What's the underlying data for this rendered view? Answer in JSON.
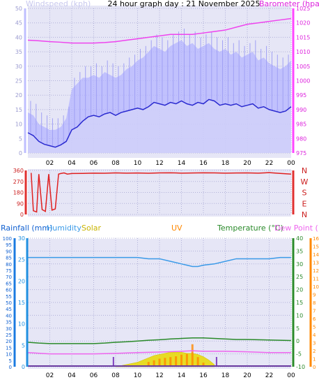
{
  "chart_data": [
    {
      "type": "line",
      "title": "24 hour graph day : 21 November 2025",
      "left_axis_label": "Windspeed (kph)",
      "right_axis_label": "Barometer (hpa)",
      "left_ticks": [
        "0",
        "5",
        "10",
        "15",
        "20",
        "25",
        "30",
        "35",
        "40",
        "45",
        "50"
      ],
      "right_ticks": [
        "975",
        "980",
        "985",
        "990",
        "995",
        "1000",
        "1005",
        "1010",
        "1015",
        "1020",
        "1025"
      ],
      "x_ticks": [
        "02",
        "04",
        "06",
        "08",
        "10",
        "12",
        "14",
        "16",
        "18",
        "20",
        "22",
        "00"
      ],
      "ylim_left": [
        0,
        50
      ],
      "ylim_right": [
        975,
        1025
      ],
      "x_range_hours": [
        0,
        24
      ],
      "colors": {
        "wind": "#2a2ad0",
        "gust": "#b4b4ff",
        "barometer": "#ee44ee",
        "axis_left": "#bfbfff",
        "axis_right": "#ff44ff"
      },
      "series": [
        {
          "key": "wind",
          "x": [
            0,
            0.5,
            1,
            1.5,
            2,
            2.5,
            3,
            3.5,
            4,
            4.5,
            5,
            5.5,
            6,
            6.5,
            7,
            7.5,
            8,
            8.5,
            9,
            9.5,
            10,
            10.5,
            11,
            11.5,
            12,
            12.5,
            13,
            13.5,
            14,
            14.5,
            15,
            15.5,
            16,
            16.5,
            17,
            17.5,
            18,
            18.5,
            19,
            19.5,
            20,
            20.5,
            21,
            21.5,
            22,
            22.5,
            23,
            23.5,
            24
          ],
          "values": [
            7,
            6,
            4,
            3,
            2.5,
            2,
            2.8,
            4,
            8,
            9,
            11,
            12.5,
            13,
            12.5,
            13.5,
            14,
            13,
            14,
            14.5,
            15,
            15.5,
            15,
            16,
            17.5,
            17,
            16.5,
            17.5,
            17,
            18,
            17,
            16.5,
            17.5,
            17,
            18.5,
            18,
            16.5,
            17,
            16.5,
            17,
            16,
            16.5,
            17,
            15.5,
            16,
            15,
            14.5,
            14,
            14.5,
            16
          ]
        },
        {
          "key": "gust",
          "x": [
            0,
            0.5,
            1,
            1.5,
            2,
            2.5,
            3,
            3.5,
            4,
            4.5,
            5,
            5.5,
            6,
            6.5,
            7,
            7.5,
            8,
            8.5,
            9,
            9.5,
            10,
            10.5,
            11,
            11.5,
            12,
            12.5,
            13,
            13.5,
            14,
            14.5,
            15,
            15.5,
            16,
            16.5,
            17,
            17.5,
            18,
            18.5,
            19,
            19.5,
            20,
            20.5,
            21,
            21.5,
            22,
            22.5,
            23,
            23.5,
            24
          ],
          "values": [
            14,
            13,
            10,
            9,
            8,
            8,
            9,
            12,
            22,
            24,
            26,
            26,
            27,
            26,
            28,
            27,
            26,
            27,
            29,
            30,
            32,
            33,
            35,
            37,
            36,
            35,
            37,
            38,
            39,
            37,
            38,
            36,
            37,
            38,
            36,
            35,
            36,
            34,
            35,
            33,
            34,
            35,
            32,
            33,
            31,
            30,
            29,
            30,
            32
          ]
        },
        {
          "key": "barometer",
          "x": [
            0,
            1,
            2,
            3,
            4,
            5,
            6,
            7,
            8,
            9,
            10,
            11,
            12,
            13,
            14,
            15,
            16,
            17,
            18,
            19,
            20,
            21,
            22,
            23,
            24
          ],
          "values": [
            1014,
            1013.8,
            1013.5,
            1013.3,
            1013,
            1013,
            1013,
            1013.2,
            1013.5,
            1014,
            1014.5,
            1015,
            1015.5,
            1016,
            1016,
            1016,
            1016.5,
            1017,
            1017.5,
            1018.5,
            1019.5,
            1020,
            1020.5,
            1021,
            1021.5
          ]
        }
      ]
    },
    {
      "type": "scatter",
      "title": "",
      "right_labels": [
        "N",
        "W",
        "S",
        "E",
        "N"
      ],
      "left_ticks": [
        "0",
        "90",
        "180",
        "270",
        "360"
      ],
      "x_ticks": [
        "02",
        "04",
        "06",
        "08",
        "10",
        "12",
        "14",
        "16",
        "18",
        "20",
        "22",
        "00"
      ],
      "ylim": [
        0,
        360
      ],
      "color": "#e02020",
      "series": [
        {
          "key": "direction",
          "x": [
            0.3,
            0.5,
            0.8,
            1.0,
            1.3,
            1.6,
            1.9,
            2.2,
            2.5,
            2.8,
            3.0,
            3.3,
            3.6,
            4,
            5,
            6,
            7,
            8,
            9,
            10,
            11,
            12,
            13,
            14,
            15,
            16,
            17,
            18,
            19,
            20,
            21,
            22,
            23,
            24
          ],
          "values": [
            340,
            30,
            20,
            330,
            40,
            25,
            330,
            35,
            45,
            330,
            335,
            340,
            330,
            335,
            336,
            338,
            337,
            340,
            338,
            339,
            337,
            340,
            341,
            338,
            339,
            341,
            340,
            338,
            339,
            340,
            338,
            342,
            336,
            330
          ]
        }
      ]
    },
    {
      "type": "line",
      "title": "",
      "legend": [
        "Rainfall (mm)",
        "Humidity",
        "Solar",
        "UV",
        "Temperature (°C)",
        "Dew Point (°C)"
      ],
      "left_ticks_humidity": [
        "0",
        "5",
        "10",
        "15",
        "20",
        "25",
        "30",
        "35",
        "40",
        "45",
        "50",
        "55",
        "60",
        "65",
        "70",
        "75",
        "80",
        "85",
        "90",
        "95",
        "100"
      ],
      "left_ticks_rain": [
        "0",
        "5",
        "10",
        "15",
        "20",
        "25",
        "30"
      ],
      "right_ticks_temp": [
        "-10",
        "-5",
        "0",
        "5",
        "10",
        "15",
        "20",
        "25",
        "30",
        "35",
        "40"
      ],
      "right_ticks_uv": [
        "0",
        "1",
        "2",
        "3",
        "4",
        "5",
        "6",
        "7",
        "8",
        "9",
        "10",
        "11",
        "12",
        "13",
        "14",
        "15",
        "16"
      ],
      "x_ticks": [
        "02",
        "04",
        "06",
        "08",
        "10",
        "12",
        "14",
        "16",
        "18",
        "20",
        "22",
        "00"
      ],
      "colors": {
        "rain": "#2090e0",
        "humidity": "#1060d0",
        "solar": "#d0c000",
        "uv": "#ff8800",
        "temperature": "#2a8a2a",
        "dewpoint": "#ee66ee",
        "humidity_line": "#3a9ae8",
        "marker": "#8040c0"
      },
      "series": [
        {
          "key": "humidity",
          "x": [
            0,
            2,
            4,
            6,
            8,
            10,
            11,
            12,
            13,
            14,
            14.5,
            15,
            15.5,
            16,
            17,
            18,
            19,
            20,
            21,
            22,
            23,
            24
          ],
          "values": [
            85,
            85,
            85,
            85,
            85,
            85,
            84,
            84,
            82,
            80,
            79,
            78,
            78,
            79,
            80,
            82,
            84,
            84,
            84,
            84,
            85,
            85
          ]
        },
        {
          "key": "temperature",
          "x": [
            0,
            1,
            2,
            3,
            4,
            5,
            6,
            7,
            8,
            9,
            10,
            11,
            12,
            13,
            14,
            15,
            16,
            17,
            18,
            19,
            20,
            21,
            22,
            23,
            24
          ],
          "values": [
            -0.5,
            -0.8,
            -1,
            -1,
            -1,
            -1,
            -1,
            -0.8,
            -0.5,
            -0.3,
            0,
            0.3,
            0.5,
            0.8,
            1,
            1.2,
            1.2,
            1,
            0.8,
            0.6,
            0.6,
            0.5,
            0.4,
            0.3,
            0.2
          ]
        },
        {
          "key": "dewpoint",
          "x": [
            0,
            2,
            4,
            6,
            8,
            10,
            12,
            14,
            15,
            16,
            18,
            20,
            22,
            24
          ],
          "values": [
            -4.5,
            -5,
            -5,
            -5,
            -4.8,
            -4.5,
            -4.3,
            -4,
            -3.8,
            -4,
            -4,
            -4.2,
            -4.5,
            -4.5
          ]
        },
        {
          "key": "solar",
          "x": [
            8,
            9,
            10,
            10.5,
            11,
            11.5,
            12,
            12.5,
            13,
            13.5,
            14,
            14.5,
            15,
            15.5,
            16,
            16.5,
            17
          ],
          "values": [
            0,
            2,
            4,
            6,
            8,
            10,
            11,
            12,
            13,
            13,
            13,
            12,
            12,
            11,
            9,
            6,
            2
          ]
        },
        {
          "key": "uv",
          "x": [
            10.5,
            11,
            11.5,
            12,
            12.5,
            13,
            13.5,
            14,
            14.5,
            15,
            15.5,
            16
          ],
          "values": [
            0,
            0.6,
            0.8,
            1.0,
            1.1,
            1.2,
            1.3,
            1.5,
            1.6,
            2.8,
            1.2,
            0.5
          ]
        },
        {
          "key": "rainfall",
          "x": [
            0,
            24
          ],
          "values": [
            0,
            0
          ]
        }
      ],
      "markers_hours": [
        7.8,
        17.2
      ]
    }
  ]
}
